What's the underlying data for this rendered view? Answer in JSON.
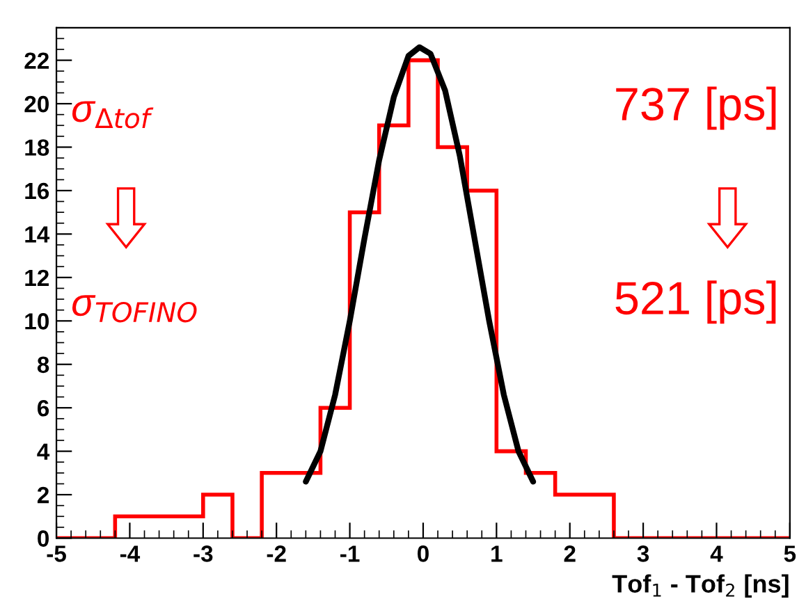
{
  "chart_data": {
    "type": "histogram",
    "xlabel": "Tof$_{1}$ - Tof$_{2}$ [ns]",
    "bins": [
      -5,
      -4.6,
      -4.2,
      -3.8,
      -3.4,
      -3.0,
      -2.6,
      -2.2,
      -1.8,
      -1.4,
      -1.0,
      -0.6,
      -0.2,
      0.2,
      0.6,
      1.0,
      1.4,
      1.8,
      2.2,
      2.6,
      3.0,
      3.4,
      3.8,
      4.2,
      4.6,
      5.0
    ],
    "values": [
      0,
      0,
      1,
      1,
      1,
      2,
      0,
      3,
      3,
      6,
      15,
      19,
      22,
      18,
      16,
      4,
      3,
      2,
      2,
      0,
      0,
      0,
      0,
      0,
      0
    ],
    "color": "#ff0000",
    "series": [
      {
        "type": "line",
        "color": "#000000",
        "x": [
          -1.6,
          -1.4,
          -1.2,
          -1.0,
          -0.8,
          -0.6,
          -0.4,
          -0.2,
          -0.05,
          0.1,
          0.3,
          0.5,
          0.7,
          0.9,
          1.1,
          1.3,
          1.5
        ],
        "values": [
          2.6,
          4.0,
          6.6,
          10.0,
          13.8,
          17.4,
          20.3,
          22.2,
          22.6,
          22.3,
          20.6,
          17.6,
          13.8,
          10.0,
          6.6,
          4.0,
          2.6
        ]
      }
    ],
    "xlim": [
      -5,
      5
    ],
    "xticks": [
      -5,
      -4,
      -3,
      -2,
      -1,
      0,
      1,
      2,
      3,
      4,
      5
    ],
    "ylim": [
      0,
      23.5
    ],
    "yticks": [
      0,
      2,
      4,
      6,
      8,
      10,
      12,
      14,
      16,
      18,
      20,
      22
    ],
    "annotations": [
      "σ$_{Δtof}$",
      "σ$_{TOFINO}$",
      "737 [ps]",
      "521 [ps]"
    ],
    "grid": false,
    "legend": false
  }
}
